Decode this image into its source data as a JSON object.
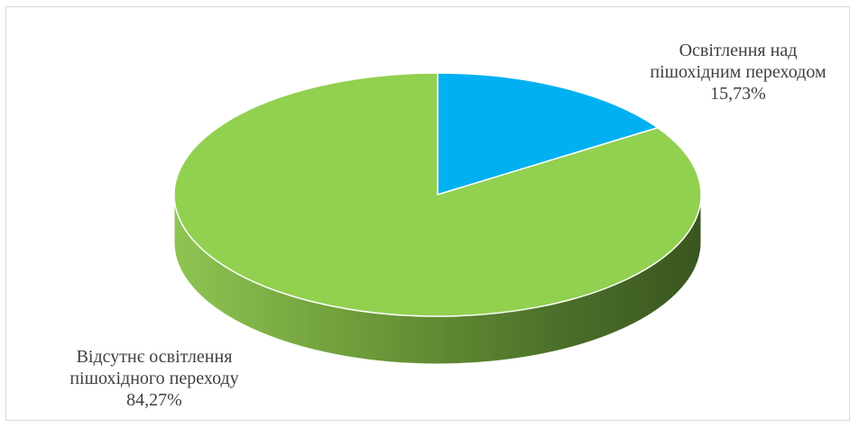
{
  "chart_data": {
    "type": "pie",
    "style": "3d",
    "title": "",
    "slices": [
      {
        "label_lines": [
          "Освітлення над",
          "пішохідним переходом"
        ],
        "value_text": "15,73%",
        "value": 15.73,
        "color": "#00b0f0"
      },
      {
        "label_lines": [
          "Відсутнє освітлення",
          "пішохідного переходу"
        ],
        "value_text": "84,27%",
        "value": 84.27,
        "color": "#92d050"
      }
    ],
    "legend": "none",
    "labels_placement": "outside"
  }
}
